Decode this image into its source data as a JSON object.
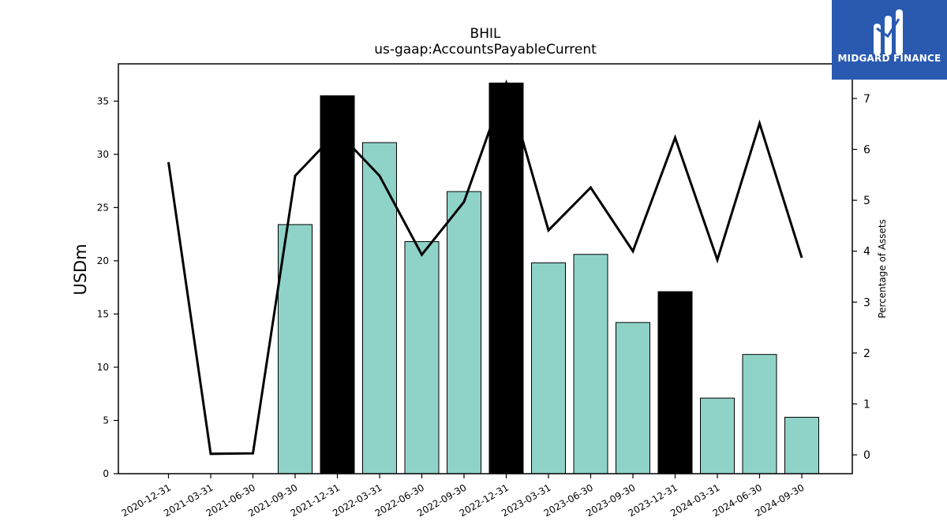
{
  "brand": {
    "name": "MIDGARD FINANCE",
    "logo_color": "#2a5ab0"
  },
  "chart_data": {
    "type": "bar",
    "title": "BHIL",
    "subtitle": "us-gaap:AccountsPayableCurrent",
    "ylabel": "USDm",
    "y2label": "Percentage of Assets",
    "categories": [
      "2020-12-31",
      "2021-03-31",
      "2021-06-30",
      "2021-09-30",
      "2021-12-31",
      "2022-03-31",
      "2022-06-30",
      "2022-09-30",
      "2022-12-31",
      "2023-03-31",
      "2023-06-30",
      "2023-09-30",
      "2023-12-31",
      "2024-03-31",
      "2024-06-30",
      "2024-09-30"
    ],
    "series": [
      {
        "type": "bar",
        "axis": "left",
        "values": [
          null,
          null,
          null,
          23.4,
          35.5,
          31.1,
          21.8,
          26.5,
          36.7,
          19.8,
          20.6,
          14.2,
          17.1,
          7.1,
          11.2,
          5.3
        ],
        "highlight": [
          false,
          false,
          false,
          false,
          true,
          false,
          false,
          false,
          true,
          false,
          false,
          false,
          true,
          false,
          false,
          false
        ]
      },
      {
        "type": "line",
        "axis": "right",
        "values": [
          5.75,
          0.02,
          0.03,
          5.48,
          6.35,
          5.48,
          3.93,
          4.97,
          7.3,
          4.41,
          5.25,
          4.0,
          6.23,
          3.83,
          6.51,
          3.87
        ]
      }
    ],
    "ylim": [
      0,
      38.5
    ],
    "y2lim": [
      -0.37,
      7.68
    ],
    "yticks": [
      0,
      5,
      10,
      15,
      20,
      25,
      30,
      35
    ],
    "y2ticks": [
      0,
      1,
      2,
      3,
      4,
      5,
      6,
      7
    ],
    "colors": {
      "bar": "#8fd3c8",
      "bar_highlight": "#000000",
      "line": "#000000"
    },
    "grid": false,
    "legend": "none"
  }
}
